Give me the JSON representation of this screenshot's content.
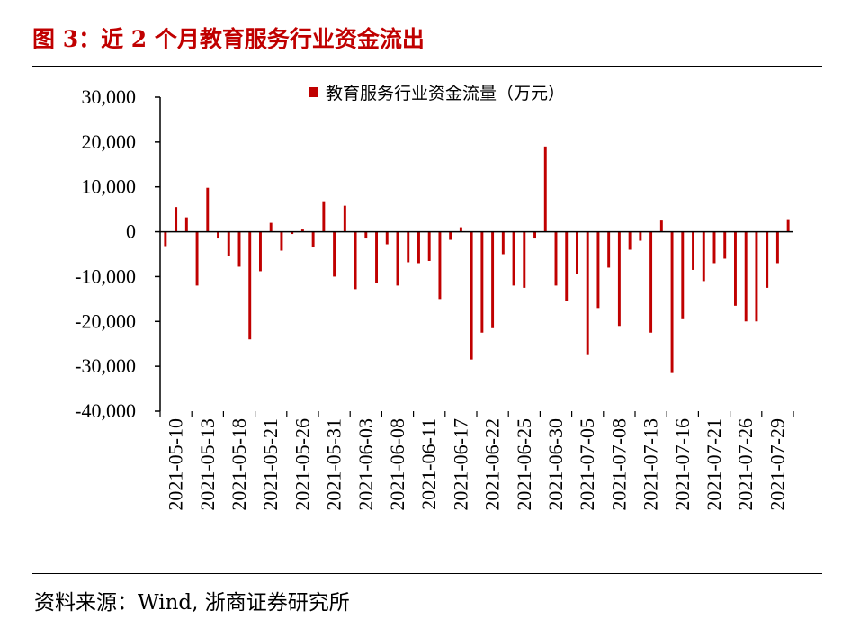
{
  "title": "图 3：近 2 个月教育服务行业资金流出",
  "source": "资料来源：Wind, 浙商证券研究所",
  "colors": {
    "bar": "#c00000",
    "title": "#c00000",
    "axis": "#000000"
  },
  "chart_data": {
    "type": "bar",
    "title": "近 2 个月教育服务行业资金流出",
    "legend": "教育服务行业资金流量（万元）",
    "legend_position": "top-right",
    "ylim": [
      -40000,
      30000
    ],
    "yticks": [
      30000,
      20000,
      10000,
      0,
      -10000,
      -20000,
      -30000,
      -40000
    ],
    "ytick_labels": [
      "30,000",
      "20,000",
      "10,000",
      "0",
      "-10,000",
      "-20,000",
      "-30,000",
      "-40,000"
    ],
    "xtick_labels": [
      "2021-05-10",
      "2021-05-13",
      "2021-05-18",
      "2021-05-21",
      "2021-05-26",
      "2021-05-31",
      "2021-06-03",
      "2021-06-08",
      "2021-06-11",
      "2021-06-17",
      "2021-06-22",
      "2021-06-25",
      "2021-06-30",
      "2021-07-05",
      "2021-07-08",
      "2021-07-13",
      "2021-07-16",
      "2021-07-21",
      "2021-07-26",
      "2021-07-29"
    ],
    "series": [
      {
        "name": "教育服务行业资金流量（万元）",
        "values": [
          -3200,
          5500,
          3200,
          -12000,
          9800,
          -1500,
          -5500,
          -7800,
          -24000,
          -8800,
          2000,
          -4200,
          -500,
          500,
          -3500,
          6800,
          -10000,
          5800,
          -12800,
          -1500,
          -11500,
          -2800,
          -12000,
          -6800,
          -7000,
          -6500,
          -15000,
          -1800,
          1000,
          -28500,
          -22500,
          -21500,
          -5000,
          -12000,
          -12500,
          -1500,
          19000,
          -12000,
          -15500,
          -9500,
          -27500,
          -17000,
          -8000,
          -21000,
          -4000,
          -2000,
          -22500,
          2500,
          -31500,
          -19500,
          -8500,
          -11000,
          -7000,
          -6000,
          -16500,
          -20000,
          -20000,
          -12500,
          -7000,
          2800
        ]
      }
    ]
  }
}
